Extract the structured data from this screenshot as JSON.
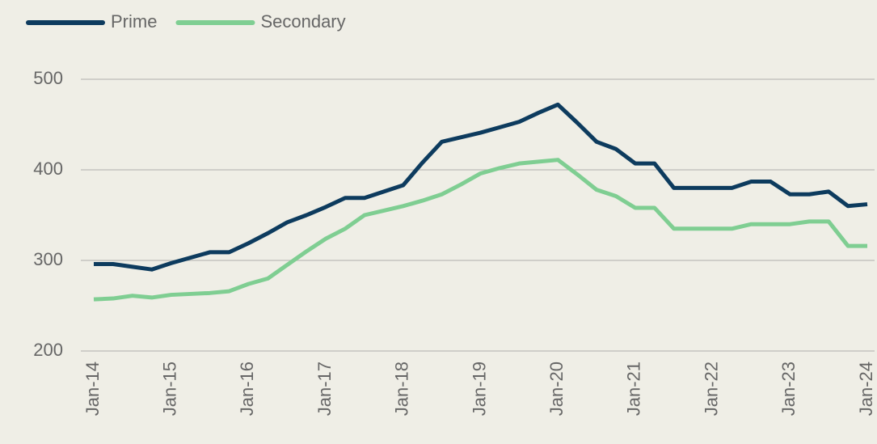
{
  "chart_data": {
    "type": "line",
    "categories": [
      "Jan-14",
      null,
      null,
      null,
      "Jan-15",
      null,
      null,
      null,
      "Jan-16",
      null,
      null,
      null,
      "Jan-17",
      null,
      null,
      null,
      "Jan-18",
      null,
      null,
      null,
      "Jan-19",
      null,
      null,
      null,
      "Jan-20",
      null,
      null,
      null,
      "Jan-21",
      null,
      null,
      null,
      "Jan-22",
      null,
      null,
      null,
      "Jan-23",
      null,
      null,
      null,
      "Jan-24"
    ],
    "series": [
      {
        "name": "Prime",
        "color": "#0d3b5e",
        "values": [
          296,
          296,
          293,
          290,
          297,
          303,
          309,
          309,
          319,
          330,
          342,
          350,
          359,
          369,
          369,
          376,
          383,
          408,
          431,
          436,
          441,
          447,
          453,
          463,
          472,
          452,
          431,
          423,
          407,
          407,
          380,
          380,
          380,
          380,
          387,
          387,
          373,
          373,
          376,
          360,
          362
        ]
      },
      {
        "name": "Secondary",
        "color": "#7fce92",
        "values": [
          257,
          258,
          261,
          259,
          262,
          263,
          264,
          266,
          274,
          280,
          295,
          310,
          324,
          335,
          350,
          355,
          360,
          366,
          373,
          384,
          396,
          402,
          407,
          409,
          411,
          395,
          378,
          371,
          358,
          358,
          335,
          335,
          335,
          335,
          340,
          340,
          340,
          343,
          343,
          316,
          316
        ]
      }
    ],
    "ylim": [
      200,
      500
    ],
    "yticks": [
      200,
      300,
      400,
      500
    ],
    "grid": true,
    "legend": "top-left"
  }
}
